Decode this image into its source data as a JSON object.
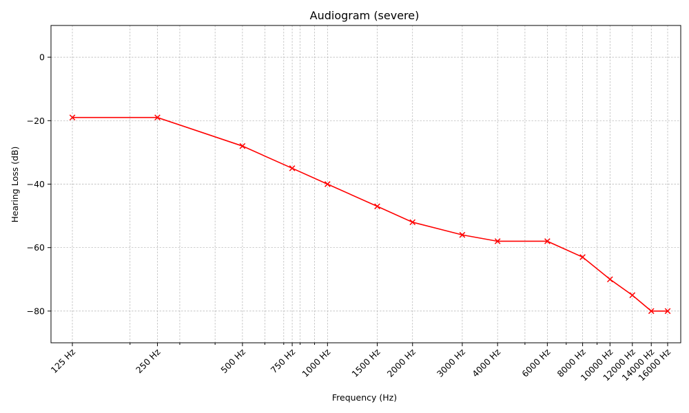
{
  "chart_data": {
    "type": "line",
    "title": "Audiogram (severe)",
    "xlabel": "Frequency (Hz)",
    "ylabel": "Hearing Loss (dB)",
    "x_scale": "log",
    "xlim": [
      105,
      17800
    ],
    "ylim": [
      -90,
      10
    ],
    "grid": true,
    "x_ticks": [
      {
        "value": 125,
        "label": "125 Hz"
      },
      {
        "value": 250,
        "label": "250 Hz"
      },
      {
        "value": 500,
        "label": "500 Hz"
      },
      {
        "value": 750,
        "label": "750 Hz"
      },
      {
        "value": 1000,
        "label": "1000 Hz"
      },
      {
        "value": 1500,
        "label": "1500 Hz"
      },
      {
        "value": 2000,
        "label": "2000 Hz"
      },
      {
        "value": 3000,
        "label": "3000 Hz"
      },
      {
        "value": 4000,
        "label": "4000 Hz"
      },
      {
        "value": 6000,
        "label": "6000 Hz"
      },
      {
        "value": 8000,
        "label": "8000 Hz"
      },
      {
        "value": 10000,
        "label": "10000 Hz"
      },
      {
        "value": 12000,
        "label": "12000 Hz"
      },
      {
        "value": 14000,
        "label": "14000 Hz"
      },
      {
        "value": 16000,
        "label": "16000 Hz"
      }
    ],
    "x_minor_ticks": [
      200,
      300,
      400,
      600,
      700,
      800,
      900,
      5000,
      7000,
      9000
    ],
    "y_ticks": [
      {
        "value": 0,
        "label": "0"
      },
      {
        "value": -20,
        "label": "−20"
      },
      {
        "value": -40,
        "label": "−40"
      },
      {
        "value": -60,
        "label": "−60"
      },
      {
        "value": -80,
        "label": "−80"
      }
    ],
    "series": [
      {
        "color": "#ff0000",
        "marker": "x",
        "points": [
          {
            "x": 125,
            "y": -19
          },
          {
            "x": 250,
            "y": -19
          },
          {
            "x": 500,
            "y": -28
          },
          {
            "x": 750,
            "y": -35
          },
          {
            "x": 1000,
            "y": -40
          },
          {
            "x": 1500,
            "y": -47
          },
          {
            "x": 2000,
            "y": -52
          },
          {
            "x": 3000,
            "y": -56
          },
          {
            "x": 4000,
            "y": -58
          },
          {
            "x": 6000,
            "y": -58
          },
          {
            "x": 8000,
            "y": -63
          },
          {
            "x": 10000,
            "y": -70
          },
          {
            "x": 12000,
            "y": -75
          },
          {
            "x": 14000,
            "y": -80
          },
          {
            "x": 16000,
            "y": -80
          }
        ]
      }
    ]
  }
}
